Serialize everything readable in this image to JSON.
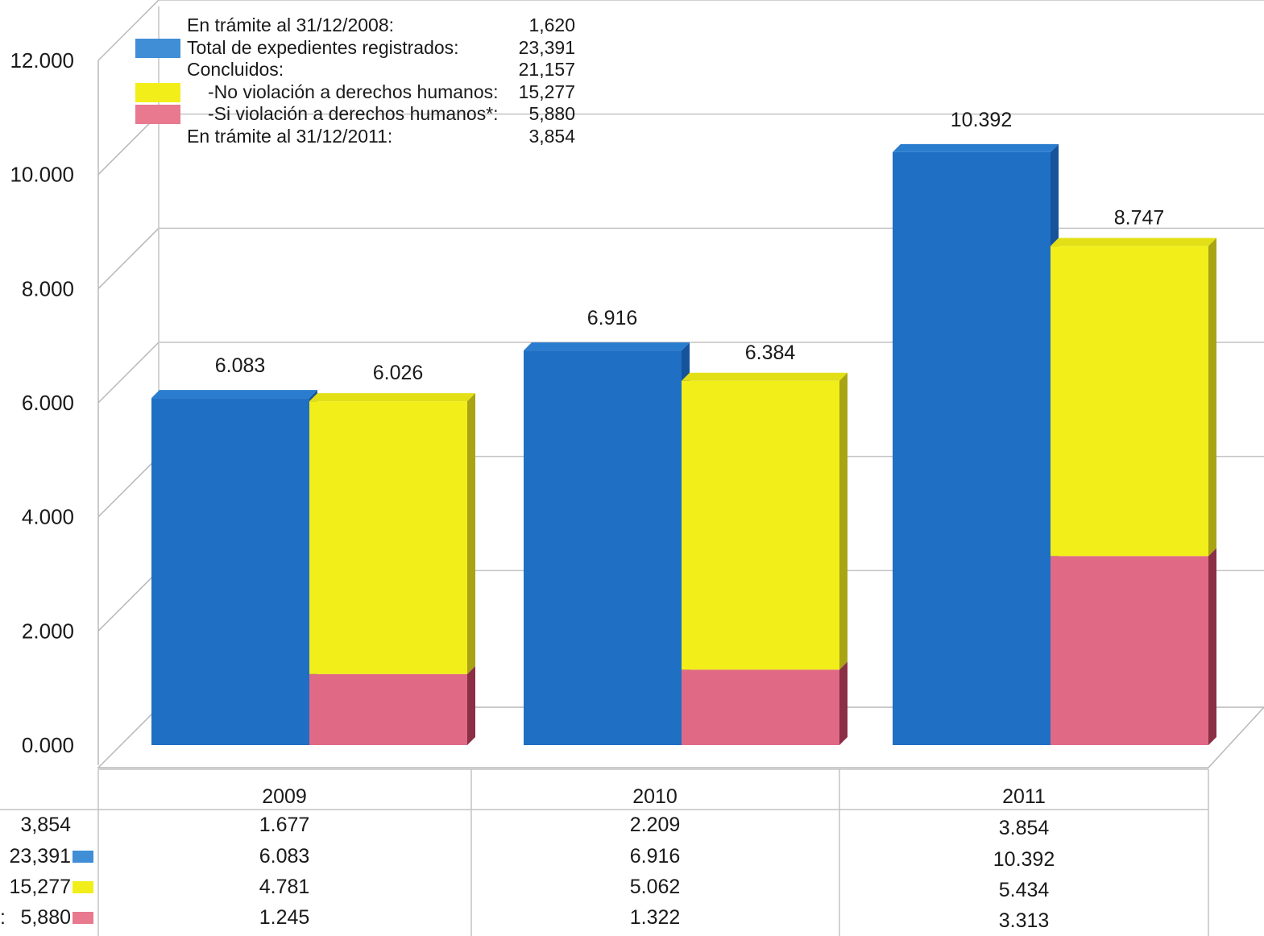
{
  "legend": {
    "items": [
      {
        "label": "En trámite al 31/12/2008:",
        "value": "1,620",
        "swatch": null,
        "indent": false
      },
      {
        "label": "Total de expedientes registrados:",
        "value": "23,391",
        "swatch": "#3f8ed6",
        "indent": false
      },
      {
        "label": "Concluidos:",
        "value": "21,157",
        "swatch": null,
        "indent": false
      },
      {
        "label": "-No violación a derechos humanos:",
        "value": "15,277",
        "swatch": "#f2ee1a",
        "indent": true
      },
      {
        "label": "-Si violación a derechos humanos*:",
        "value": "5,880",
        "swatch": "#e8798f",
        "indent": true
      },
      {
        "label": "En trámite al 31/12/2011:",
        "value": "3,854",
        "swatch": null,
        "indent": false
      }
    ]
  },
  "colors": {
    "blue": "#1f6fc4",
    "yellow": "#f2ee1a",
    "pink": "#e06a86",
    "legend_blue": "#3f8ed6"
  },
  "chart_data": {
    "type": "bar",
    "categories": [
      "2009",
      "2010",
      "2011"
    ],
    "ylim": [
      0,
      12000
    ],
    "yticks": [
      "0.000",
      "2.000",
      "4.000",
      "6.000",
      "8.000",
      "10.000",
      "12.000"
    ],
    "grid": true,
    "legend_position": "top-left",
    "series": [
      {
        "name": "Total de expedientes registrados",
        "values": [
          6083,
          6916,
          10392
        ],
        "labels": [
          "6.083",
          "6.916",
          "10.392"
        ]
      },
      {
        "name": "-Si violación a derechos humanos*",
        "values": [
          1245,
          1322,
          3313
        ]
      },
      {
        "name": "-No violación a derechos humanos",
        "values": [
          4781,
          5062,
          5434
        ]
      }
    ],
    "stack_totals": [
      6026,
      6384,
      8747
    ],
    "stack_total_labels": [
      "6.026",
      "6.384",
      "8.747"
    ]
  },
  "table": {
    "years": [
      "2009",
      "2010",
      "2011"
    ],
    "rows": [
      {
        "label": "3,854",
        "swatch": null,
        "cells": [
          "1.677",
          "2.209",
          "3.854"
        ]
      },
      {
        "label": "23,391",
        "swatch": "#3f8ed6",
        "cells": [
          "6.083",
          "6.916",
          "10.392"
        ]
      },
      {
        "label": "15,277",
        "swatch": "#f2ee1a",
        "cells": [
          "4.781",
          "5.062",
          "5.434"
        ]
      },
      {
        "label": "5,880",
        "swatch": "#e8798f",
        "cells": [
          "1.245",
          "1.322",
          "3.313"
        ]
      }
    ],
    "row_prefix": ":"
  }
}
